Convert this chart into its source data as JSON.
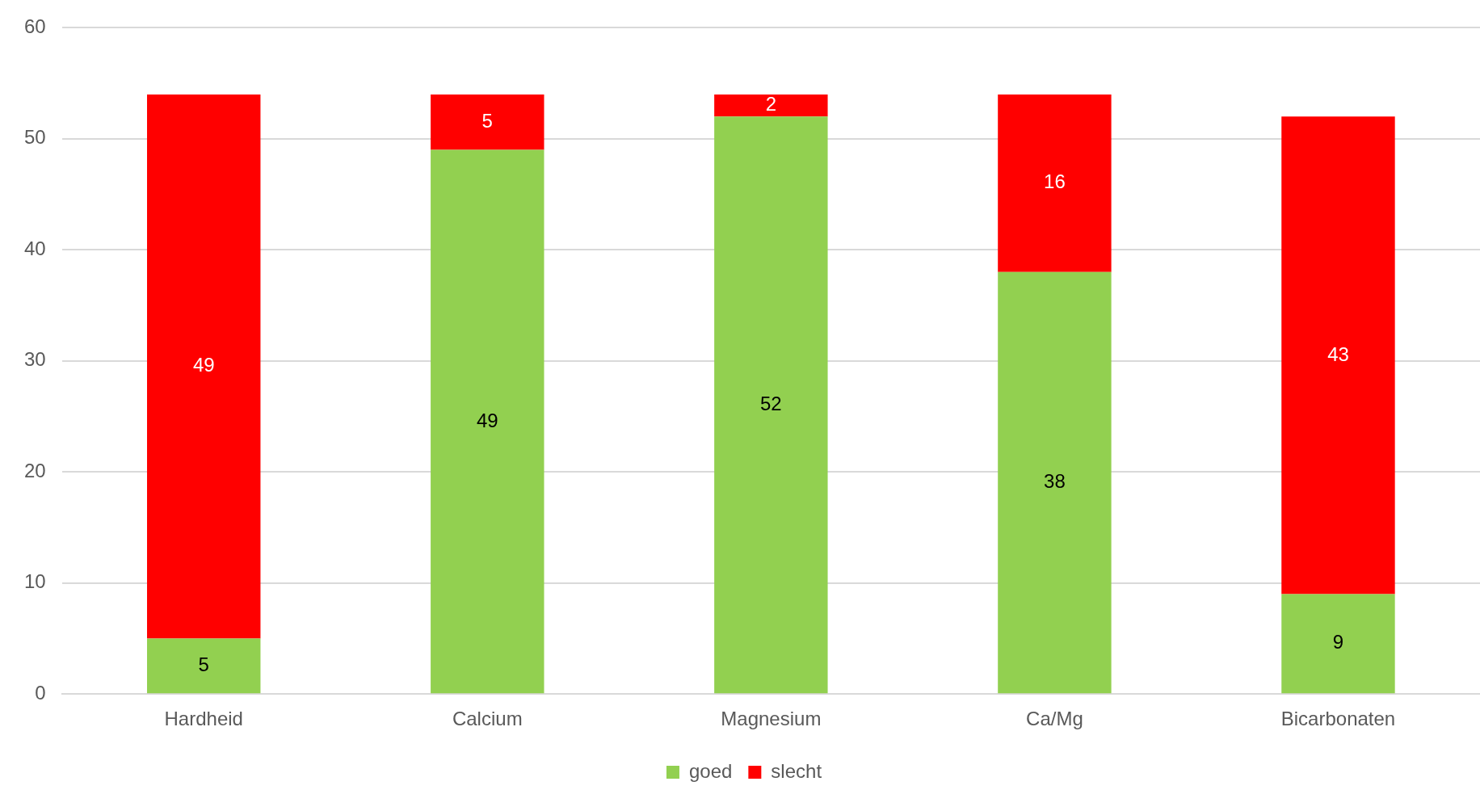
{
  "chart_data": {
    "type": "bar",
    "stacked": true,
    "categories": [
      "Hardheid",
      "Calcium",
      "Magnesium",
      "Ca/Mg",
      "Bicarbonaten"
    ],
    "series": [
      {
        "name": "goed",
        "color": "#92d050",
        "values": [
          5,
          49,
          52,
          38,
          9
        ]
      },
      {
        "name": "slecht",
        "color": "#ff0000",
        "values": [
          49,
          5,
          2,
          16,
          43
        ]
      }
    ],
    "ylim": [
      0,
      60
    ],
    "yticks": [
      0,
      10,
      20,
      30,
      40,
      50,
      60
    ],
    "grid": "y",
    "legend": "bottom",
    "data_labels": true
  }
}
